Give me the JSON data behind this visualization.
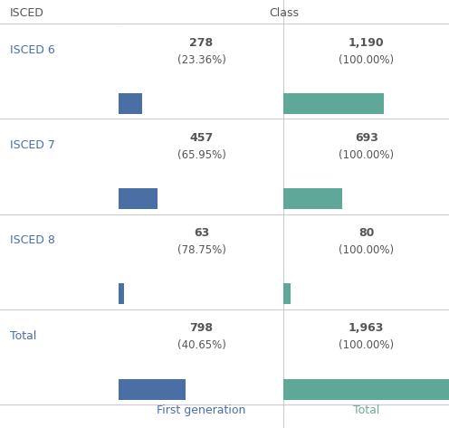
{
  "rows": [
    "ISCED 6",
    "ISCED 7",
    "ISCED 8",
    "Total"
  ],
  "col_header": "Class",
  "row_header": "ISCED",
  "columns": [
    "First generation",
    "Total"
  ],
  "values": [
    [
      278,
      1190
    ],
    [
      457,
      693
    ],
    [
      63,
      80
    ],
    [
      798,
      1963
    ]
  ],
  "percentages": [
    [
      "23.36%",
      "100.00%"
    ],
    [
      "65.95%",
      "100.00%"
    ],
    [
      "78.75%",
      "100.00%"
    ],
    [
      "40.65%",
      "100.00%"
    ]
  ],
  "bar_color_first": "#4a6fa5",
  "bar_color_total": "#5fa898",
  "row_label_color": "#4a6fa5",
  "text_color": "#555555",
  "header_color": "#555555",
  "footer_color_first": "#4a6fa5",
  "footer_color_total": "#6aaa9a",
  "grid_color": "#cccccc",
  "bg_color": "#ffffff",
  "max_val": 1963,
  "figsize": [
    4.96,
    4.73
  ],
  "dpi": 100
}
